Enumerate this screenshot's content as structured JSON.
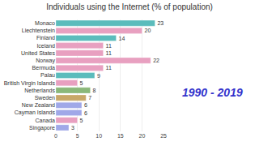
{
  "chart_data": {
    "type": "bar",
    "orientation": "horizontal",
    "title": "Individuals using the Internet (% of population)",
    "categories": [
      "Monaco",
      "Liechtenstein",
      "Finland",
      "Iceland",
      "United States",
      "Norway",
      "Bermuda",
      "Palau",
      "British Virgin Islands",
      "Netherlands",
      "Sweden",
      "New Zealand",
      "Cayman Islands",
      "Canada",
      "Singapore"
    ],
    "values": [
      23,
      20,
      14,
      11,
      11,
      22,
      11,
      9,
      5,
      8,
      7,
      6,
      6,
      5,
      3
    ],
    "colors": [
      "#5bbcbc",
      "#e8a0c0",
      "#5bbcbc",
      "#e8a0c0",
      "#e8a0c0",
      "#e8a0c0",
      "#e8a0c0",
      "#5bbcbc",
      "#e8a0c0",
      "#8ab87a",
      "#c8a868",
      "#a0a8e8",
      "#a0a8e8",
      "#e8a0c0",
      "#a0a8e8"
    ],
    "xlim": [
      0,
      25
    ],
    "xticks": [
      0,
      5,
      10,
      15,
      20,
      25
    ],
    "grid": true,
    "data_labels": true,
    "annotations": [
      {
        "text": "1990 - 2019",
        "color": "#3333cc"
      }
    ]
  }
}
